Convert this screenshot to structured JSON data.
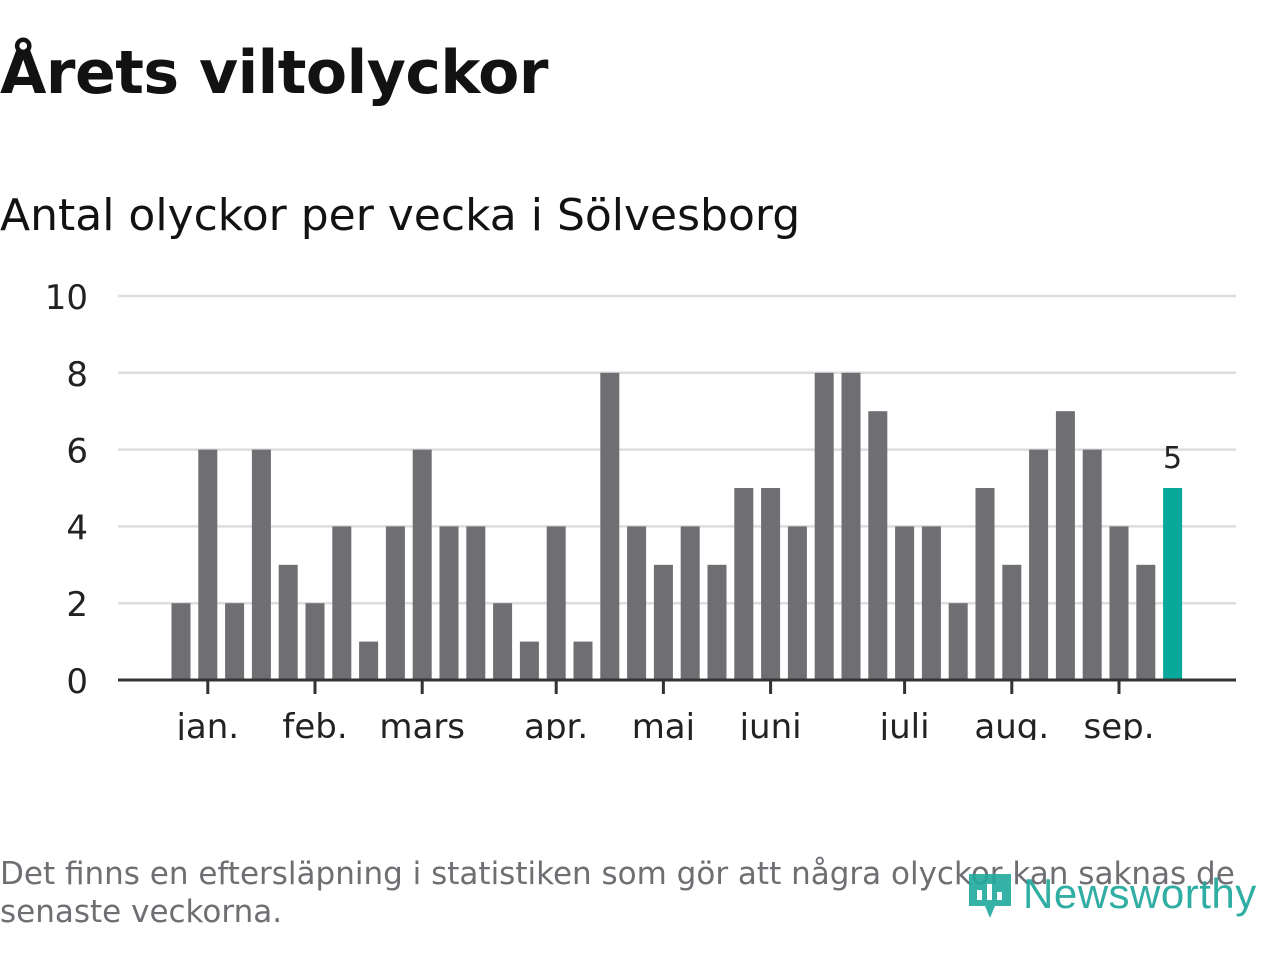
{
  "header": {
    "title": "Årets viltolyckor",
    "subtitle": "Antal olyckor per vecka i Sölvesborg"
  },
  "chart_data": {
    "type": "bar",
    "title": "Årets viltolyckor",
    "subtitle": "Antal olyckor per vecka i Sölvesborg",
    "xlabel": "",
    "ylabel": "",
    "ylim": [
      0,
      10
    ],
    "yticks": [
      0,
      2,
      4,
      6,
      8,
      10
    ],
    "grid": true,
    "values": [
      2,
      6,
      2,
      6,
      3,
      2,
      4,
      1,
      4,
      6,
      4,
      4,
      2,
      1,
      4,
      1,
      8,
      4,
      3,
      4,
      3,
      5,
      5,
      4,
      8,
      8,
      7,
      4,
      4,
      2,
      5,
      3,
      6,
      7,
      6,
      4,
      3,
      5
    ],
    "month_labels": [
      {
        "label": "jan.",
        "week": 1
      },
      {
        "label": "feb.",
        "week": 5
      },
      {
        "label": "mars",
        "week": 9
      },
      {
        "label": "apr.",
        "week": 14
      },
      {
        "label": "maj",
        "week": 18
      },
      {
        "label": "juni",
        "week": 22
      },
      {
        "label": "juli",
        "week": 27
      },
      {
        "label": "aug.",
        "week": 31
      },
      {
        "label": "sep.",
        "week": 35
      }
    ],
    "highlight_index": 37,
    "highlight_label": "5",
    "colors": {
      "bar": "#6f6e73",
      "highlight": "#08a89b",
      "grid": "#dddddd",
      "axis": "#333333",
      "text": "#222222"
    }
  },
  "footer": {
    "note": "Det finns en eftersläpning i statistiken som gör att några olyckor kan saknas de senaste veckorna.",
    "brand": "Newsworthy",
    "brand_icon": "newsworthy-logo-icon"
  }
}
